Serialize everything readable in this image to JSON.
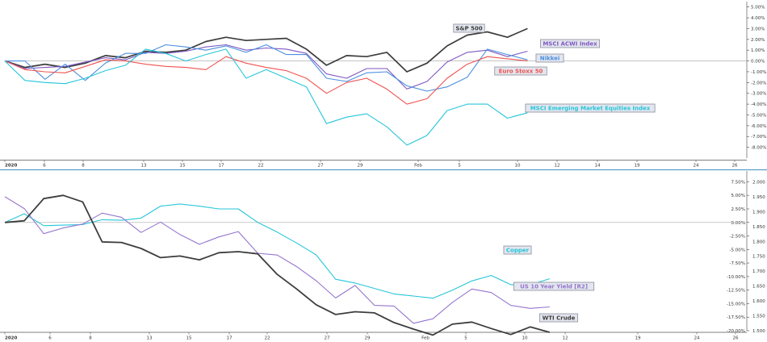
{
  "chart_data": [
    {
      "type": "line",
      "x_labels": [
        "2020",
        "6",
        "8",
        "13",
        "15",
        "17",
        "22",
        "27",
        "29",
        "Feb",
        "5",
        "10",
        "12",
        "14",
        "19",
        "24",
        "26"
      ],
      "y_unit": "%",
      "ylim": [
        -9.0,
        5.5
      ],
      "yticks": [
        5.0,
        4.0,
        3.0,
        2.0,
        1.0,
        0.0,
        -1.0,
        -2.0,
        -3.0,
        -4.0,
        -5.0,
        -6.0,
        -7.0,
        -8.0
      ],
      "ytick_labels": [
        "5.00%",
        "4.00%",
        "3.00%",
        "2.00%",
        "1.00%",
        "0.00%",
        "-1.00%",
        "-2.00%",
        "-3.00%",
        "-4.00%",
        "-5.00%",
        "-6.00%",
        "-7.00%",
        "-8.00%"
      ],
      "zero_line": true,
      "series": [
        {
          "name": "S&P 500",
          "color": "#3d3d3d",
          "values": [
            0.0,
            -0.6,
            -0.3,
            -0.6,
            -0.2,
            0.5,
            0.3,
            0.9,
            0.8,
            1.0,
            1.8,
            2.2,
            1.9,
            2.0,
            2.1,
            1.1,
            -0.4,
            0.5,
            0.4,
            0.8,
            -1.0,
            -0.2,
            1.4,
            2.4,
            2.7,
            2.2,
            3.0
          ]
        },
        {
          "name": "MSCI ACWI Index",
          "color": "#7e57c2",
          "values": [
            0.0,
            -0.7,
            -0.6,
            -0.5,
            -0.1,
            0.3,
            0.1,
            0.8,
            0.7,
            0.9,
            1.3,
            1.5,
            1.0,
            1.2,
            1.1,
            0.7,
            -1.2,
            -1.6,
            -0.7,
            -0.7,
            -2.6,
            -1.9,
            -0.1,
            0.8,
            1.0,
            0.4,
            0.9
          ]
        },
        {
          "name": "Nikkei",
          "color": "#4a8fe0",
          "values": [
            0.0,
            0.0,
            -1.7,
            -0.3,
            -1.8,
            -0.2,
            0.7,
            0.7,
            1.5,
            1.3,
            1.0,
            1.4,
            0.8,
            1.5,
            0.6,
            0.6,
            -1.6,
            -1.9,
            -1.1,
            -1.0,
            -2.3,
            -2.8,
            -2.4,
            -1.5,
            1.1,
            0.6,
            0.1
          ]
        },
        {
          "name": "Euro Stoxx 50",
          "color": "#ef5350",
          "values": [
            0.0,
            -0.8,
            -1.0,
            -1.1,
            -0.5,
            0.1,
            0.0,
            -0.3,
            -0.5,
            -0.6,
            -0.8,
            0.4,
            -0.2,
            -0.6,
            -0.9,
            -1.6,
            -3.0,
            -2.0,
            -1.6,
            -2.6,
            -4.0,
            -3.5,
            -1.6,
            -0.3,
            0.4,
            0.2,
            0.0
          ]
        },
        {
          "name": "MSCI Emerging Market Equities Index",
          "color": "#26c6da",
          "values": [
            0.0,
            -1.8,
            -2.0,
            -2.1,
            -1.6,
            -0.9,
            -0.4,
            1.1,
            0.7,
            0.0,
            0.6,
            1.1,
            -1.6,
            -0.8,
            -1.6,
            -2.4,
            -5.8,
            -5.2,
            -4.9,
            -6.1,
            -7.8,
            -6.9,
            -4.6,
            -4.0,
            -4.0,
            -5.3,
            -4.8
          ]
        }
      ]
    },
    {
      "type": "line",
      "x_labels": [
        "2020",
        "6",
        "8",
        "13",
        "15",
        "17",
        "22",
        "27",
        "29",
        "Feb",
        "5",
        "10",
        "12",
        "19",
        "24",
        "26"
      ],
      "ylim_left": [
        -20.0,
        9.5
      ],
      "yticks_left": [
        7.5,
        5.0,
        2.5,
        0.0,
        -2.5,
        -5.0,
        -7.5,
        -10.0,
        -12.5,
        -15.0,
        -17.5,
        -20.0
      ],
      "ytick_labels_left": [
        "7.50%",
        "5.00%",
        "2.50%",
        "0.00%",
        "-2.50%",
        "-5.00%",
        "-7.50%",
        "-10.00%",
        "-12.50%",
        "-15.00%",
        "-17.50%",
        "-20.00%"
      ],
      "ytick_labels_right": [
        "2.000",
        "1.950",
        "1.900",
        "1.850",
        "1.800",
        "1.750",
        "1.700",
        "1.650",
        "1.600",
        "1.550",
        "1.500"
      ],
      "yticks_right": [
        2.0,
        1.95,
        1.9,
        1.85,
        1.8,
        1.75,
        1.7,
        1.65,
        1.6,
        1.55,
        1.5
      ],
      "zero_line": true,
      "series": [
        {
          "name": "Copper",
          "color": "#26c6da",
          "values": [
            0.0,
            1.6,
            -0.6,
            -0.5,
            -0.4,
            0.5,
            0.4,
            0.8,
            3.0,
            3.4,
            3.0,
            2.5,
            2.5,
            0.0,
            -1.8,
            -3.8,
            -6.0,
            -10.5,
            -11.2,
            -12.2,
            -13.2,
            -13.6,
            -14.0,
            -12.5,
            -10.8,
            -9.8,
            -11.5,
            -11.5,
            -10.4
          ]
        },
        {
          "name": "US 10 Year Yield [R2]",
          "color": "#9575cd",
          "values": [
            1.95,
            1.91,
            1.826,
            1.845,
            1.858,
            1.895,
            1.881,
            1.83,
            1.865,
            1.823,
            1.79,
            1.815,
            1.833,
            1.76,
            1.754,
            1.715,
            1.668,
            1.61,
            1.652,
            1.585,
            1.583,
            1.525,
            1.54,
            1.595,
            1.64,
            1.628,
            1.585,
            1.575,
            1.58
          ]
        },
        {
          "name": "WTI Crude",
          "color": "#3d3d3d",
          "values": [
            0.0,
            0.3,
            4.4,
            5.0,
            3.8,
            -3.6,
            -3.7,
            -4.8,
            -6.5,
            -6.2,
            -6.9,
            -5.6,
            -5.4,
            -5.8,
            -9.6,
            -12.3,
            -15.2,
            -17.0,
            -16.5,
            -16.7,
            -18.5,
            -19.7,
            -20.8,
            -18.8,
            -18.4,
            -19.6,
            -20.7,
            -19.3,
            -20.3
          ]
        }
      ]
    }
  ]
}
